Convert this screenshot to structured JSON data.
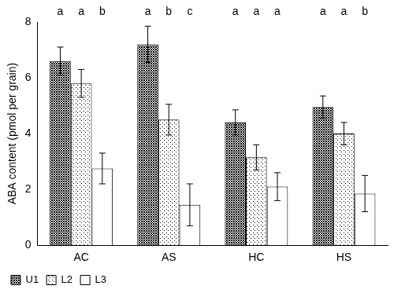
{
  "chart_data": {
    "type": "bar",
    "y_label": "ABA content (pmol per grain)",
    "categories": [
      "AC",
      "AS",
      "HC",
      "HS"
    ],
    "series": [
      {
        "name": "U1",
        "color": "#000000",
        "values": [
          6.6,
          7.2,
          4.4,
          4.95
        ],
        "errors": [
          0.5,
          0.65,
          0.45,
          0.4
        ]
      },
      {
        "name": "L2",
        "color": "#000000",
        "values": [
          5.8,
          4.5,
          3.15,
          4.0
        ],
        "errors": [
          0.5,
          0.55,
          0.45,
          0.4
        ]
      },
      {
        "name": "L3",
        "color": "#000000",
        "values": [
          2.75,
          1.45,
          2.1,
          1.85
        ],
        "errors": [
          0.55,
          0.75,
          0.5,
          0.65
        ]
      }
    ],
    "significance_letters": [
      [
        "a",
        "a",
        "b"
      ],
      [
        "a",
        "b",
        "c"
      ],
      [
        "a",
        "a",
        "a"
      ],
      [
        "a",
        "a",
        "b"
      ]
    ],
    "ylim": [
      0,
      8
    ],
    "yticks": [
      0,
      2,
      4,
      6,
      8
    ],
    "grid": false,
    "legend": "bottom"
  }
}
